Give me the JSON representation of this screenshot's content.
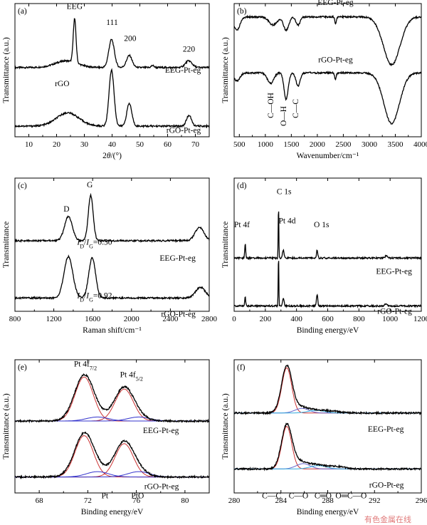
{
  "chart_data": [
    {
      "panel": "(a)",
      "type": "line",
      "xlabel": "2θ/(°)",
      "ylabel": "Transmittance (a.u.)",
      "xlim": [
        5,
        75
      ],
      "xticks": [
        10,
        20,
        30,
        40,
        50,
        60,
        70
      ],
      "series": [
        {
          "name": "EEG-Pt-eg",
          "color": "#000000",
          "offset": 0.52,
          "baseline": 0.05,
          "peaks": [
            {
              "x": 26.5,
              "h": 0.33,
              "w": 0.5
            },
            {
              "x": 39.8,
              "h": 0.21,
              "w": 1.0
            },
            {
              "x": 46.2,
              "h": 0.09,
              "w": 1.0
            },
            {
              "x": 54.6,
              "h": 0.015,
              "w": 0.5
            },
            {
              "x": 67.6,
              "h": 0.05,
              "w": 1.2
            },
            {
              "x": 23.5,
              "h": 0.05,
              "w": 4.0
            }
          ]
        },
        {
          "name": "rGO-Pt-eg",
          "color": "#000000",
          "offset": 0.08,
          "baseline": 0.02,
          "peaks": [
            {
              "x": 24.0,
              "h": 0.1,
              "w": 4.0
            },
            {
              "x": 39.8,
              "h": 0.42,
              "w": 0.9
            },
            {
              "x": 46.2,
              "h": 0.17,
              "w": 0.9
            },
            {
              "x": 67.7,
              "h": 0.08,
              "w": 0.9
            },
            {
              "x": 81.0,
              "h": 0.04,
              "w": 1.2
            }
          ]
        }
      ],
      "annotations": [
        {
          "text": "EEG",
          "x": 26.5,
          "y": 0.96
        },
        {
          "text": "111",
          "x": 40,
          "y": 0.84
        },
        {
          "text": "200",
          "x": 46.5,
          "y": 0.72
        },
        {
          "text": "220",
          "x": 67.7,
          "y": 0.64
        },
        {
          "text": "rGO",
          "x": 22,
          "y": 0.38
        },
        {
          "text": "EEG-Pt-eg",
          "x": 72,
          "y": 0.48,
          "anchor": "end"
        },
        {
          "text": "rGO-Pt-eg",
          "x": 72,
          "y": 0.03,
          "anchor": "end"
        }
      ]
    },
    {
      "panel": "(b)",
      "type": "line",
      "xlabel": "Wavenumber/cm⁻¹",
      "ylabel": "Transmittance (a.u.)",
      "xlim": [
        400,
        4000
      ],
      "xticks": [
        500,
        1000,
        1500,
        2000,
        2500,
        3000,
        3500,
        4000
      ],
      "series": [
        {
          "name": "EEG-Pt-eg",
          "color": "#000000",
          "offset": 0.9,
          "baseline": 0.0,
          "peaks": [
            {
              "x": 450,
              "h": -0.1,
              "w": 60
            },
            {
              "x": 1150,
              "h": -0.06,
              "w": 80
            },
            {
              "x": 1400,
              "h": -0.1,
              "w": 50
            },
            {
              "x": 1630,
              "h": -0.06,
              "w": 40
            },
            {
              "x": 2350,
              "h": -0.05,
              "w": 15
            },
            {
              "x": 3430,
              "h": -0.36,
              "w": 160
            }
          ]
        },
        {
          "name": "rGO-Pt-eg",
          "color": "#000000",
          "offset": 0.48,
          "baseline": 0.0,
          "peaks": [
            {
              "x": 450,
              "h": -0.06,
              "w": 60
            },
            {
              "x": 1100,
              "h": -0.08,
              "w": 60
            },
            {
              "x": 1400,
              "h": -0.2,
              "w": 40
            },
            {
              "x": 1630,
              "h": -0.1,
              "w": 40
            },
            {
              "x": 2350,
              "h": -0.05,
              "w": 15
            },
            {
              "x": 3430,
              "h": -0.38,
              "w": 150
            }
          ]
        }
      ],
      "annotations": [
        {
          "text": "EEG-Pt-eg",
          "x": 2350,
          "y": 0.99
        },
        {
          "text": "rGO-Pt-eg",
          "x": 2350,
          "y": 0.56
        },
        {
          "text": "C—OH",
          "x": 1150,
          "y": 0.14,
          "rotate": -90
        },
        {
          "text": "O—H",
          "x": 1400,
          "y": 0.08,
          "rotate": -90
        },
        {
          "text": "C—C",
          "x": 1630,
          "y": 0.14,
          "rotate": -90
        }
      ]
    },
    {
      "panel": "(c)",
      "type": "line",
      "xlabel": "Raman shift/cm⁻¹",
      "ylabel": "Transmittance",
      "xlim": [
        800,
        2800
      ],
      "xticks": [
        800,
        1200,
        1600,
        2000,
        2400,
        2800
      ],
      "series": [
        {
          "name": "EEG-Pt-eg",
          "color": "#000000",
          "offset": 0.53,
          "baseline": 0.0,
          "peaks": [
            {
              "x": 1350,
              "h": 0.18,
              "w": 40
            },
            {
              "x": 1580,
              "h": 0.34,
              "w": 25
            },
            {
              "x": 2700,
              "h": 0.1,
              "w": 45
            }
          ]
        },
        {
          "name": "rGO-Pt-eg",
          "color": "#000000",
          "offset": 0.1,
          "baseline": 0.0,
          "peaks": [
            {
              "x": 1350,
              "h": 0.31,
              "w": 45
            },
            {
              "x": 1595,
              "h": 0.3,
              "w": 35
            },
            {
              "x": 2710,
              "h": 0.08,
              "w": 50
            }
          ]
        }
      ],
      "annotations": [
        {
          "text": "D",
          "x": 1330,
          "y": 0.75
        },
        {
          "text": "G",
          "x": 1570,
          "y": 0.93
        },
        {
          "text": "I",
          "sub": "D",
          "text2": "/",
          "itext": "I",
          "sub2": "G",
          "tail": "=0.50",
          "x": 1620,
          "y": 0.5,
          "ratio": true
        },
        {
          "text": "I",
          "sub": "D",
          "text2": "/",
          "itext": "I",
          "sub2": "G",
          "tail": "=0.92",
          "x": 1620,
          "y": 0.1,
          "ratio": true
        },
        {
          "text": "EEG-Pt-eg",
          "x": 2660,
          "y": 0.38,
          "anchor": "end"
        },
        {
          "text": "rGO-Pt-eg",
          "x": 2660,
          "y": -0.04,
          "anchor": "end"
        }
      ]
    },
    {
      "panel": "(d)",
      "type": "line",
      "xlabel": "Binding energy/eV",
      "ylabel": "Transmittance",
      "xlim": [
        0,
        1200
      ],
      "xticks": [
        0,
        200,
        400,
        600,
        800,
        1000,
        1200
      ],
      "series": [
        {
          "name": "EEG-Pt-eg",
          "color": "#000000",
          "offset": 0.4,
          "baseline": 0.0,
          "peaks": [
            {
              "x": 71,
              "h": 0.11,
              "w": 3
            },
            {
              "x": 284.5,
              "h": 0.4,
              "w": 2
            },
            {
              "x": 315,
              "h": 0.06,
              "w": 5
            },
            {
              "x": 532,
              "h": 0.06,
              "w": 4
            },
            {
              "x": 975,
              "h": 0.015,
              "w": 8
            }
          ]
        },
        {
          "name": "rGO-Pt-eg",
          "color": "#000000",
          "offset": 0.04,
          "baseline": 0.0,
          "peaks": [
            {
              "x": 71,
              "h": 0.07,
              "w": 3
            },
            {
              "x": 284.5,
              "h": 0.39,
              "w": 2
            },
            {
              "x": 315,
              "h": 0.06,
              "w": 5
            },
            {
              "x": 532,
              "h": 0.09,
              "w": 4
            },
            {
              "x": 975,
              "h": 0.015,
              "w": 8
            }
          ]
        }
      ],
      "annotations": [
        {
          "text": "C 1s",
          "x": 320,
          "y": 0.88
        },
        {
          "text": "Pt 4f",
          "x": 50,
          "y": 0.63
        },
        {
          "text": "Pt 4d",
          "x": 340,
          "y": 0.66
        },
        {
          "text": "O 1s",
          "x": 560,
          "y": 0.63
        },
        {
          "text": "EEG-Pt-eg",
          "x": 1140,
          "y": 0.28,
          "anchor": "end"
        },
        {
          "text": "rGO-Pt-eg",
          "x": 1140,
          "y": -0.02,
          "anchor": "end"
        }
      ]
    },
    {
      "panel": "(e)",
      "type": "line",
      "xlabel": "Binding energy/eV",
      "ylabel": "Transmittance (a.u.)",
      "xlim": [
        66,
        82
      ],
      "xticks": [
        68,
        72,
        76,
        80
      ],
      "series": [
        {
          "name": "EEG-Pt-eg",
          "color": "#000000",
          "offset": 0.54,
          "baseline": 0.0,
          "peaks": [
            {
              "x": 71.7,
              "h": 0.34,
              "w": 0.8
            },
            {
              "x": 75.0,
              "h": 0.25,
              "w": 0.8
            },
            {
              "x": 72.8,
              "h": 0.02,
              "w": 0.8
            },
            {
              "x": 76.2,
              "h": 0.02,
              "w": 0.8
            }
          ]
        },
        {
          "name": "rGO-Pt-eg",
          "color": "#000000",
          "offset": 0.12,
          "baseline": 0.0,
          "peaks": [
            {
              "x": 71.7,
              "h": 0.32,
              "w": 0.8
            },
            {
              "x": 75.0,
              "h": 0.26,
              "w": 0.8
            },
            {
              "x": 72.8,
              "h": 0.03,
              "w": 0.8
            },
            {
              "x": 76.2,
              "h": 0.03,
              "w": 0.8
            }
          ]
        }
      ],
      "fits": [
        {
          "set": 0,
          "color": "#cc3333",
          "x": 71.7,
          "h": 0.33,
          "w": 0.75
        },
        {
          "set": 0,
          "color": "#cc3333",
          "x": 75.0,
          "h": 0.24,
          "w": 0.75
        },
        {
          "set": 0,
          "color": "#3333cc",
          "x": 72.8,
          "h": 0.03,
          "w": 0.9
        },
        {
          "set": 0,
          "color": "#3333cc",
          "x": 76.2,
          "h": 0.03,
          "w": 0.9
        },
        {
          "set": 1,
          "color": "#cc3333",
          "x": 71.7,
          "h": 0.31,
          "w": 0.75
        },
        {
          "set": 1,
          "color": "#cc3333",
          "x": 75.0,
          "h": 0.25,
          "w": 0.75
        },
        {
          "set": 1,
          "color": "#3333cc",
          "x": 72.8,
          "h": 0.04,
          "w": 0.9
        },
        {
          "set": 1,
          "color": "#3333cc",
          "x": 76.2,
          "h": 0.04,
          "w": 0.9
        }
      ],
      "annotations": [
        {
          "text": "Pt 4f",
          "sub": "7/2",
          "x": 71.8,
          "y": 0.95
        },
        {
          "text": "Pt 4f",
          "sub": "5/2",
          "x": 75.6,
          "y": 0.87
        },
        {
          "text": "EEG-Pt-eg",
          "x": 79.5,
          "y": 0.45,
          "anchor": "end"
        },
        {
          "text": "rGO-Pt-eg",
          "x": 79.5,
          "y": 0.03,
          "anchor": "end"
        },
        {
          "text": "Pt",
          "x": 73.4,
          "y": -0.04
        },
        {
          "text": "PtO",
          "x": 76.1,
          "y": -0.04
        }
      ]
    },
    {
      "panel": "(f)",
      "type": "line",
      "xlabel": "Binding energy/eV",
      "ylabel": "Transmittance (a.u.)",
      "xlim": [
        280,
        296
      ],
      "xticks": [
        280,
        284,
        288,
        292,
        296
      ],
      "series": [
        {
          "name": "EEG-Pt-eg",
          "color": "#000000",
          "offset": 0.6,
          "baseline": 0.0,
          "peaks": [
            {
              "x": 284.5,
              "h": 0.35,
              "w": 0.45
            },
            {
              "x": 285.6,
              "h": 0.04,
              "w": 0.6
            },
            {
              "x": 286.7,
              "h": 0.02,
              "w": 0.7
            },
            {
              "x": 288.2,
              "h": 0.015,
              "w": 0.8
            }
          ]
        },
        {
          "name": "rGO-Pt-eg",
          "color": "#000000",
          "offset": 0.18,
          "baseline": 0.0,
          "peaks": [
            {
              "x": 284.5,
              "h": 0.33,
              "w": 0.45
            },
            {
              "x": 285.6,
              "h": 0.05,
              "w": 0.6
            },
            {
              "x": 286.9,
              "h": 0.03,
              "w": 0.7
            },
            {
              "x": 288.6,
              "h": 0.02,
              "w": 0.8
            }
          ]
        }
      ],
      "fits": [
        {
          "set": 0,
          "color": "#cc3333",
          "x": 284.5,
          "h": 0.34,
          "w": 0.42
        },
        {
          "set": 0,
          "color": "#6666cc",
          "x": 285.8,
          "h": 0.035,
          "w": 0.6
        },
        {
          "set": 0,
          "color": "#33aadd",
          "x": 287.0,
          "h": 0.02,
          "w": 0.7
        },
        {
          "set": 1,
          "color": "#cc3333",
          "x": 284.5,
          "h": 0.32,
          "w": 0.42
        },
        {
          "set": 1,
          "color": "#6666cc",
          "x": 285.9,
          "h": 0.04,
          "w": 0.6
        },
        {
          "set": 1,
          "color": "#33aadd",
          "x": 287.2,
          "h": 0.025,
          "w": 0.7
        }
      ],
      "annotations": [
        {
          "text": "EEG-Pt-eg",
          "x": 294.5,
          "y": 0.46,
          "anchor": "end"
        },
        {
          "text": "rGO-Pt-eg",
          "x": 294.5,
          "y": 0.04,
          "anchor": "end"
        },
        {
          "text": "C—C",
          "x": 283.2,
          "y": -0.04
        },
        {
          "text": "C—O",
          "x": 285.5,
          "y": -0.04
        },
        {
          "text": "C═O",
          "x": 287.6,
          "y": -0.04
        },
        {
          "text": "O═C—O",
          "x": 290.0,
          "y": -0.04
        }
      ]
    }
  ],
  "watermark": "有色金属在线"
}
